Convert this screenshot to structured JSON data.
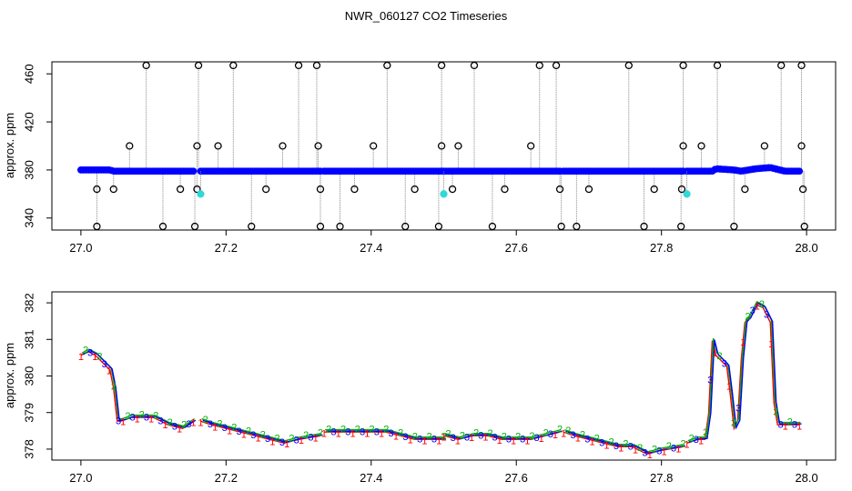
{
  "title": "NWR_060127  CO2 Timeseries",
  "colors": {
    "spike": "#000000",
    "drop_line": "#888888",
    "blue": "#0000ff",
    "green": "#00b000",
    "red": "#ff0000",
    "cyan": "#30d8d8",
    "brown": "#aa6600"
  },
  "chart_data": [
    {
      "type": "scatter",
      "ylabel": "approx. ppm",
      "xlim": [
        26.96,
        28.04
      ],
      "ylim": [
        330,
        470
      ],
      "x_ticks": [
        "27.0",
        "27.2",
        "27.4",
        "27.6",
        "27.8",
        "28.0"
      ],
      "y_ticks": [
        "340",
        "380",
        "420",
        "460"
      ],
      "baseline": {
        "segments": [
          {
            "x": [
              27.0,
              27.04,
              27.045,
              27.1,
              27.155
            ],
            "y": [
              380,
              380,
              379,
              379,
              379
            ]
          },
          {
            "x": [
              27.165,
              27.33
            ],
            "y": [
              379,
              379
            ]
          },
          {
            "x": [
              27.335,
              27.5
            ],
            "y": [
              379,
              379
            ]
          },
          {
            "x": [
              27.5,
              27.66
            ],
            "y": [
              379,
              379
            ]
          },
          {
            "x": [
              27.665,
              27.83
            ],
            "y": [
              379,
              379
            ]
          },
          {
            "x": [
              27.835,
              27.87,
              27.875,
              27.9,
              27.91,
              27.93,
              27.95,
              27.97,
              27.99
            ],
            "y": [
              379,
              379,
              381,
              380,
              379,
              381,
              382,
              379,
              379
            ]
          }
        ]
      },
      "spikes_high": [
        27.09,
        27.162,
        27.21,
        27.3,
        27.325,
        27.422,
        27.497,
        27.542,
        27.632,
        27.655,
        27.755,
        27.83,
        27.877,
        27.965,
        27.993
      ],
      "spikes_mid": [
        27.067,
        27.16,
        27.189,
        27.278,
        27.327,
        27.403,
        27.497,
        27.52,
        27.62,
        27.83,
        27.855,
        27.942,
        27.993
      ],
      "spikes_low": [
        27.022,
        27.045,
        27.137,
        27.16,
        27.255,
        27.33,
        27.377,
        27.46,
        27.512,
        27.584,
        27.66,
        27.7,
        27.79,
        27.828,
        27.915,
        27.995
      ],
      "spikes_bottom": [
        27.022,
        27.113,
        27.157,
        27.235,
        27.33,
        27.357,
        27.447,
        27.493,
        27.567,
        27.662,
        27.683,
        27.776,
        27.827,
        27.9,
        27.997
      ],
      "spike_levels": {
        "high": 467,
        "mid": 400,
        "low": 364,
        "bottom": 333
      },
      "cyan_points": {
        "x": [
          27.165,
          27.5,
          27.835
        ],
        "y": [
          360,
          360,
          360
        ]
      }
    },
    {
      "type": "line",
      "ylabel": "approx. ppm",
      "xlim": [
        26.96,
        28.04
      ],
      "ylim": [
        377.7,
        382.3
      ],
      "x_ticks": [
        "27.0",
        "27.2",
        "27.4",
        "27.6",
        "27.8",
        "28.0"
      ],
      "y_ticks": [
        "378",
        "379",
        "380",
        "381",
        "382"
      ],
      "marker_labels": [
        "1",
        "2",
        "3"
      ],
      "series": [
        {
          "x": [
            27.0,
            27.01,
            27.02,
            27.03,
            27.04,
            27.045,
            27.05,
            27.055,
            27.07,
            27.09,
            27.1,
            27.11,
            27.12,
            27.14,
            27.155
          ],
          "y": [
            380.6,
            380.7,
            380.6,
            380.4,
            380.2,
            379.7,
            378.8,
            378.8,
            378.9,
            378.9,
            378.9,
            378.8,
            378.7,
            378.6,
            378.8
          ]
        },
        {
          "x": [
            27.165,
            27.18,
            27.2,
            27.22,
            27.24,
            27.26,
            27.28,
            27.3,
            27.33
          ],
          "y": [
            378.8,
            378.7,
            378.6,
            378.5,
            378.4,
            378.3,
            378.2,
            378.3,
            378.4
          ]
        },
        {
          "x": [
            27.335,
            27.36,
            27.38,
            27.4,
            27.42,
            27.44,
            27.46,
            27.48,
            27.5
          ],
          "y": [
            378.5,
            378.5,
            378.5,
            378.5,
            378.5,
            378.4,
            378.3,
            378.3,
            378.3
          ]
        },
        {
          "x": [
            27.5,
            27.52,
            27.54,
            27.56,
            27.58,
            27.6,
            27.62,
            27.64,
            27.66
          ],
          "y": [
            378.4,
            378.3,
            378.4,
            378.4,
            378.3,
            378.3,
            378.3,
            378.4,
            378.5
          ]
        },
        {
          "x": [
            27.665,
            27.68,
            27.7,
            27.72,
            27.74,
            27.76,
            27.78,
            27.8,
            27.83
          ],
          "y": [
            378.5,
            378.4,
            378.3,
            378.2,
            378.1,
            378.1,
            377.9,
            378.0,
            378.1
          ]
        },
        {
          "x": [
            27.835,
            27.85,
            27.86,
            27.865,
            27.87,
            27.875,
            27.88,
            27.89,
            27.895,
            27.9,
            27.905,
            27.91,
            27.915,
            27.92,
            27.93,
            27.94,
            27.95,
            27.955,
            27.96,
            27.97,
            27.98,
            27.99
          ],
          "y": [
            378.2,
            378.3,
            378.3,
            379.0,
            381.0,
            380.6,
            380.5,
            380.3,
            379.5,
            378.6,
            378.8,
            380.5,
            381.5,
            381.6,
            382.0,
            381.9,
            381.5,
            379.3,
            378.7,
            378.7,
            378.7,
            378.7
          ]
        }
      ]
    }
  ]
}
